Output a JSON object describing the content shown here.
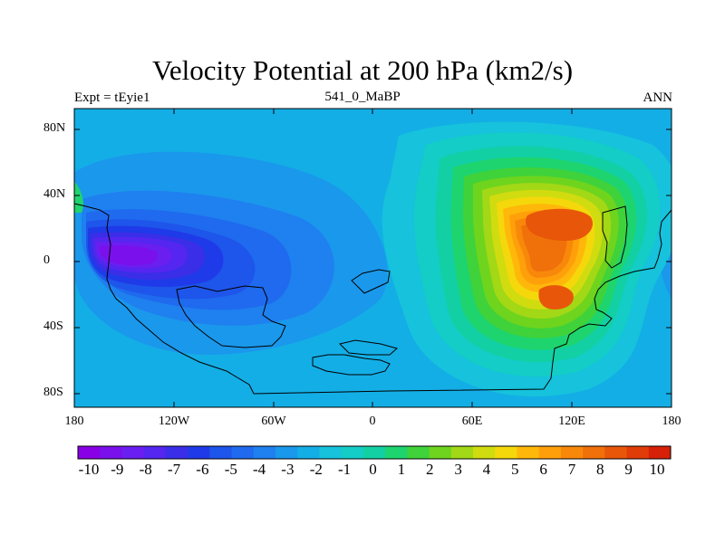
{
  "title": "Velocity Potential at 200 hPa (km2/s)",
  "experiment_label": "Expt = tEyie1",
  "case_label": "541_0_MaBP",
  "season_label": "ANN",
  "y_axis_ticks": [
    "80N",
    "40N",
    "0",
    "40S",
    "80S"
  ],
  "x_axis_ticks": [
    "180",
    "120W",
    "60W",
    "0",
    "60E",
    "120E",
    "180"
  ],
  "colorbar": {
    "labels": [
      "-10",
      "-9",
      "-8",
      "-7",
      "-6",
      "-5",
      "-4",
      "-3",
      "-2",
      "-1",
      "0",
      "1",
      "2",
      "3",
      "4",
      "5",
      "6",
      "7",
      "8",
      "9",
      "10"
    ],
    "colors": [
      "#8a00e6",
      "#7a10ec",
      "#6a1ef0",
      "#5526f0",
      "#3a2ee8",
      "#1f3ae8",
      "#1e55ea",
      "#1f6aee",
      "#1f80ef",
      "#1a98ec",
      "#13aee6",
      "#16c2dc",
      "#13cdc6",
      "#12d0a4",
      "#1ed46e",
      "#3fd23a",
      "#6ed41e",
      "#a2d816",
      "#d0dc10",
      "#f4d80c",
      "#ffb80a",
      "#ffa00a",
      "#f8880a",
      "#f0700a",
      "#e8560a",
      "#e03c08",
      "#d62008"
    ]
  },
  "map_data": {
    "type": "contour_fill",
    "field": "velocity potential, 200 hPa",
    "units": "km2/s",
    "lon_range": [
      -180,
      180
    ],
    "lat_range": [
      -90,
      90
    ],
    "min_center": {
      "lon": -150,
      "lat": 0,
      "value": -10
    },
    "max_centers": [
      {
        "lon": 110,
        "lat": 15,
        "value": 9
      },
      {
        "lon": 115,
        "lat": -25,
        "value": 9
      }
    ]
  }
}
